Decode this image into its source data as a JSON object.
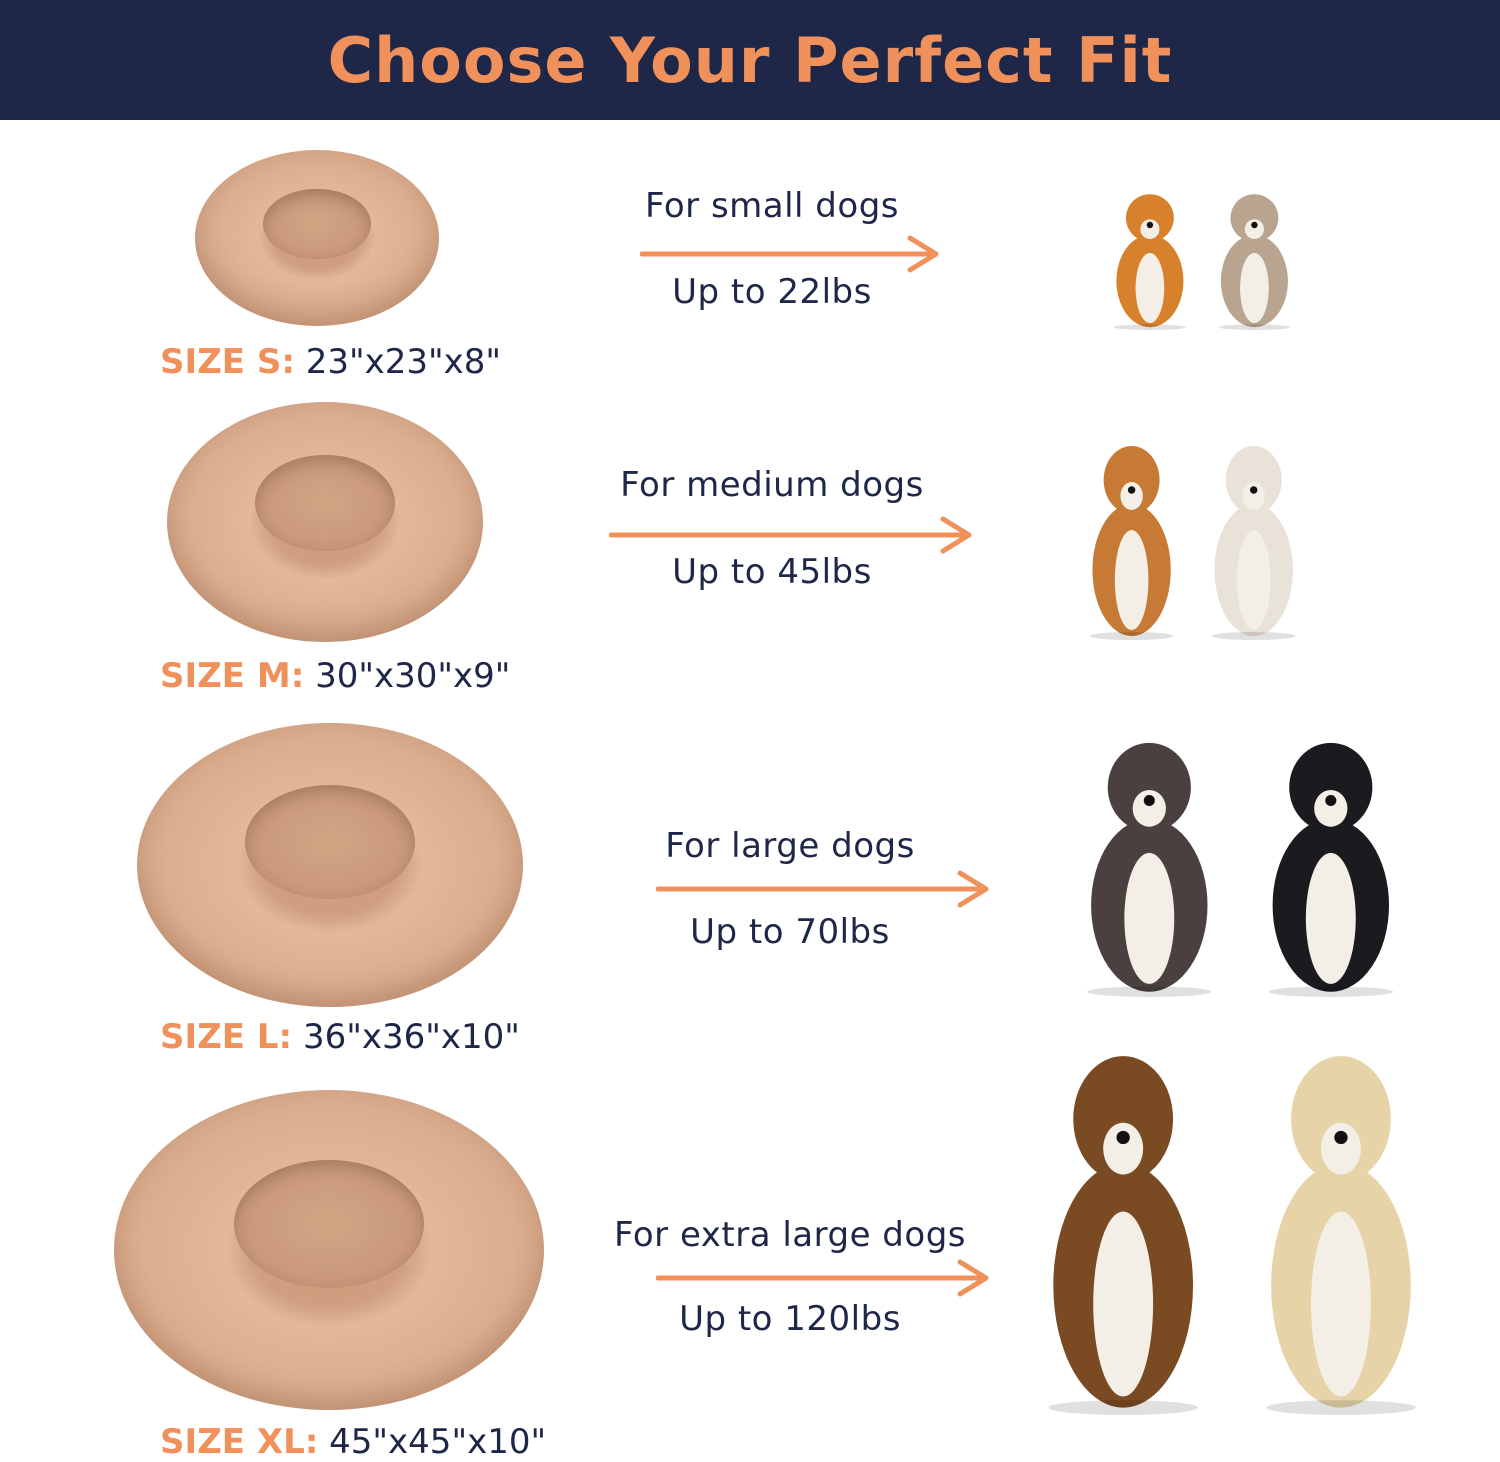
{
  "title": "Choose Your Perfect Fit",
  "accent_color": "#f0915c",
  "header_color": "#1e2748",
  "sizes": [
    {
      "label": "SIZE S:",
      "dimensions": "23\"x23\"x8\"",
      "for": "For small dogs",
      "weight": "Up to 22lbs"
    },
    {
      "label": "SIZE M:",
      "dimensions": "30\"x30\"x9\"",
      "for": "For medium dogs",
      "weight": "Up to 45lbs"
    },
    {
      "label": "SIZE L:",
      "dimensions": "36\"x36\"x10\"",
      "for": "For large dogs",
      "weight": "Up to 70lbs"
    },
    {
      "label": "SIZE XL:",
      "dimensions": "45\"x45\"x10\"",
      "for": "For extra large dogs",
      "weight": "Up to 120lbs"
    }
  ]
}
